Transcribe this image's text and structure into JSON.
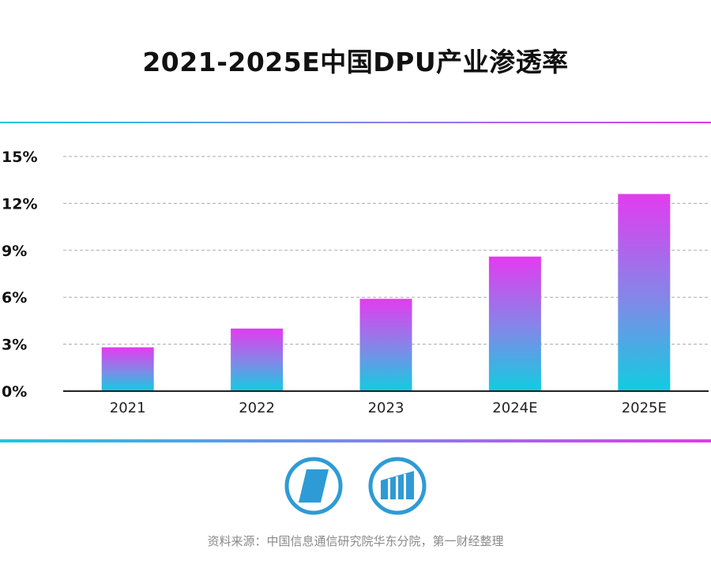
{
  "chart_data": {
    "type": "bar",
    "title": "2021-2025E中国DPU产业渗透率",
    "categories": [
      "2021",
      "2022",
      "2023",
      "2024E",
      "2025E"
    ],
    "values": [
      2.8,
      4.0,
      5.9,
      8.6,
      12.6
    ],
    "unit": "%",
    "ylim": [
      0,
      15
    ],
    "yticks": [
      "0%",
      "3%",
      "6%",
      "9%",
      "12%",
      "15%"
    ],
    "ytick_values": [
      0,
      3,
      6,
      9,
      12,
      15
    ],
    "grid": true,
    "colors": {
      "bar_top": "#e33bef",
      "bar_mid": "#7f8ae8",
      "bar_bottom": "#10cde0",
      "axis": "#222222",
      "grid": "#aaaaaa"
    }
  },
  "logos": {
    "left": "logo-parallelogram-icon",
    "right": "logo-bars-icon",
    "color": "#2e9bd6"
  },
  "source": "资料来源：中国信息通信研究院华东分院，第一财经整理"
}
